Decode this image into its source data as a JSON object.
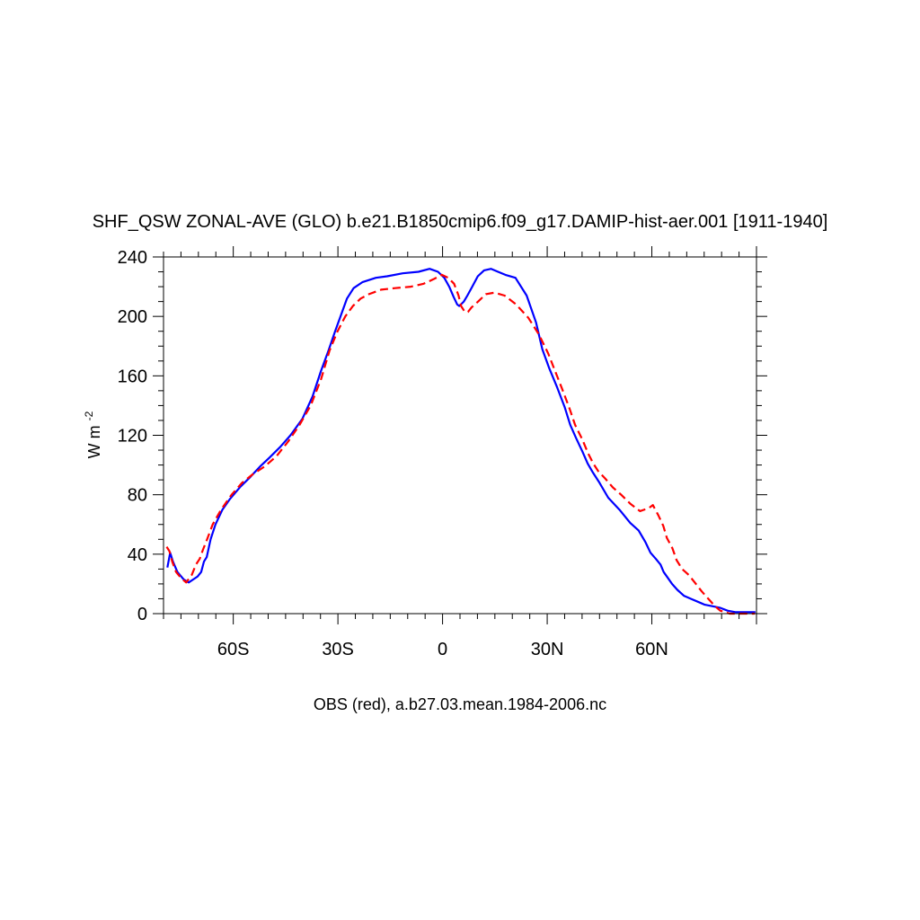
{
  "chart_data": {
    "type": "line",
    "title": "SHF_QSW ZONAL-AVE (GLO) b.e21.B1850cmip6.f09_g17.DAMIP-hist-aer.001 [1911-1940]",
    "xlabel": "OBS (red), a.b27.03.mean.1984-2006.nc",
    "ylabel": {
      "base": "W m",
      "sup": "-2"
    },
    "xlim": [
      -80,
      90
    ],
    "ylim": [
      0,
      240
    ],
    "xticks": [
      {
        "value": -60,
        "label": "60S"
      },
      {
        "value": -30,
        "label": "30S"
      },
      {
        "value": 0,
        "label": "0"
      },
      {
        "value": 30,
        "label": "30N"
      },
      {
        "value": 60,
        "label": "60N"
      }
    ],
    "yticks": [
      0,
      40,
      80,
      120,
      160,
      200,
      240
    ],
    "series": [
      {
        "color": "#0000ff",
        "dash": "solid",
        "x": [
          -78.9,
          -78.1,
          -77.3,
          -76.0,
          -74.2,
          -72.8,
          -71.5,
          -70.2,
          -69.2,
          -68.4,
          -67.6,
          -66.5,
          -65.1,
          -63.1,
          -61.0,
          -58.1,
          -55.1,
          -52.3,
          -49.6,
          -46.6,
          -43.6,
          -40.2,
          -37.3,
          -34.9,
          -32.7,
          -30.8,
          -29.1,
          -27.4,
          -25.5,
          -23.0,
          -19.1,
          -15.9,
          -11.4,
          -6.9,
          -3.7,
          -1.3,
          0.5,
          1.9,
          3.2,
          4.2,
          4.8,
          6.1,
          7.1,
          8.5,
          10.1,
          11.9,
          13.9,
          15.9,
          18.0,
          20.9,
          24.1,
          26.8,
          28.6,
          30.6,
          32.9,
          35.0,
          36.6,
          38.3,
          40.1,
          41.6,
          43.1,
          45.0,
          47.5,
          50.7,
          53.8,
          56.2,
          58.2,
          59.6,
          61.1,
          62.5,
          63.4,
          64.6,
          65.8,
          67.3,
          69.2,
          71.2,
          73.2,
          75.2,
          77.3,
          79.5,
          81.7,
          83.9,
          86.5,
          89.7
        ],
        "values": [
          31,
          41,
          35,
          28,
          23,
          21,
          23,
          25,
          28,
          35,
          38,
          50,
          60,
          70,
          77,
          85,
          92,
          99,
          105,
          112,
          120,
          131,
          146,
          163,
          177,
          190,
          201,
          212,
          219,
          223,
          226,
          227,
          229,
          230,
          232,
          230,
          226,
          220,
          213,
          208,
          207,
          210,
          214,
          220,
          227,
          231,
          232,
          230,
          228,
          226,
          214,
          196,
          178,
          165,
          152,
          139,
          127,
          118,
          109,
          101,
          95,
          88,
          78,
          70,
          61,
          56,
          48,
          41,
          37,
          33,
          28,
          24,
          20,
          16,
          12,
          10,
          8,
          6,
          5,
          4,
          2,
          1,
          1,
          1
        ]
      },
      {
        "color": "#ff0000",
        "dash": "dashed",
        "x": [
          -79.1,
          -78.3,
          -77.5,
          -76.4,
          -75.0,
          -73.5,
          -71.9,
          -70.7,
          -69.6,
          -68.7,
          -67.5,
          -65.9,
          -63.5,
          -60.5,
          -57.5,
          -54.3,
          -51.0,
          -47.6,
          -44.2,
          -41.0,
          -37.8,
          -34.8,
          -32.4,
          -30.1,
          -27.9,
          -25.7,
          -23.5,
          -21.1,
          -17.6,
          -13.6,
          -9.1,
          -5.4,
          -2.6,
          -0.2,
          1.6,
          3.3,
          4.6,
          5.3,
          6.4,
          7.3,
          8.3,
          10.2,
          12.4,
          14.9,
          17.8,
          21.1,
          24.6,
          27.6,
          30.3,
          32.3,
          34.3,
          36.4,
          38.0,
          40.1,
          41.7,
          43.2,
          44.6,
          46.6,
          48.8,
          51.2,
          53.8,
          56.6,
          59.1,
          60.3,
          61.9,
          63.3,
          64.3,
          65.9,
          67.1,
          68.7,
          70.6,
          72.3,
          74.3,
          76.2,
          78.1,
          79.6,
          81.0,
          82.3,
          83.6,
          85.1,
          87.0,
          89.5
        ],
        "values": [
          45,
          42,
          35,
          28,
          24,
          21,
          26,
          33,
          37,
          43,
          50,
          60,
          70,
          80,
          88,
          94,
          99,
          106,
          116,
          127,
          140,
          158,
          177,
          190,
          200,
          207,
          212,
          215,
          218,
          219,
          220,
          222,
          225,
          228,
          226,
          222,
          214,
          207,
          203,
          203,
          206,
          210,
          215,
          216,
          214,
          208,
          199,
          188,
          175,
          163,
          151,
          138,
          127,
          117,
          108,
          101,
          96,
          91,
          85,
          80,
          74,
          69,
          71,
          73,
          66,
          59,
          51,
          44,
          36,
          30,
          26,
          21,
          15,
          10,
          5,
          2,
          1,
          0,
          0,
          0,
          0,
          0
        ]
      }
    ]
  }
}
